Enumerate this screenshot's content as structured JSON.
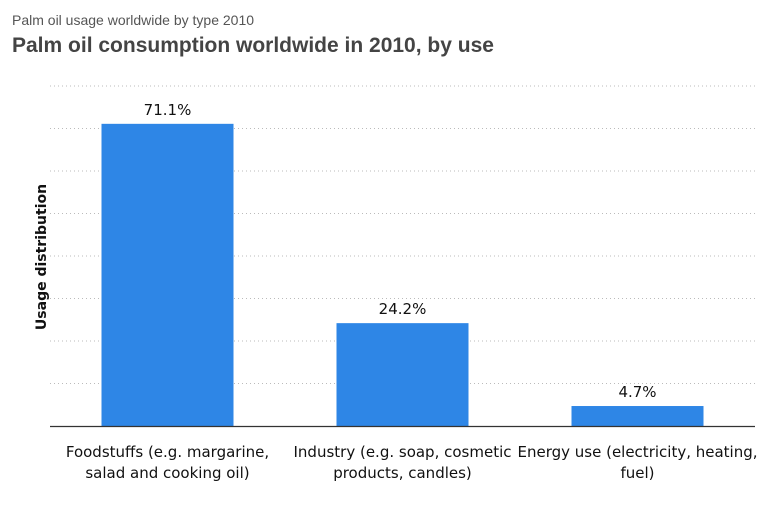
{
  "header": {
    "supertitle": "Palm oil usage worldwide by type 2010",
    "title": "Palm oil consumption worldwide in 2010, by use"
  },
  "chart_data": {
    "type": "bar",
    "categories": [
      [
        "Foodstuffs (e.g. margarine,",
        "salad and cooking oil)"
      ],
      [
        "Industry (e.g. soap, cosmetic",
        "products, candles)"
      ],
      [
        "Energy use (electricity, heating,",
        "fuel)"
      ]
    ],
    "values": [
      71.1,
      24.2,
      4.7
    ],
    "value_labels": [
      "71.1%",
      "24.2%",
      "4.7%"
    ],
    "ylabel": "Usage distribution",
    "ylim": [
      0,
      80
    ],
    "grid": true,
    "bar_color": "#2e86e6",
    "grid_color": "#bbbbbb",
    "axis_color": "#333333"
  }
}
